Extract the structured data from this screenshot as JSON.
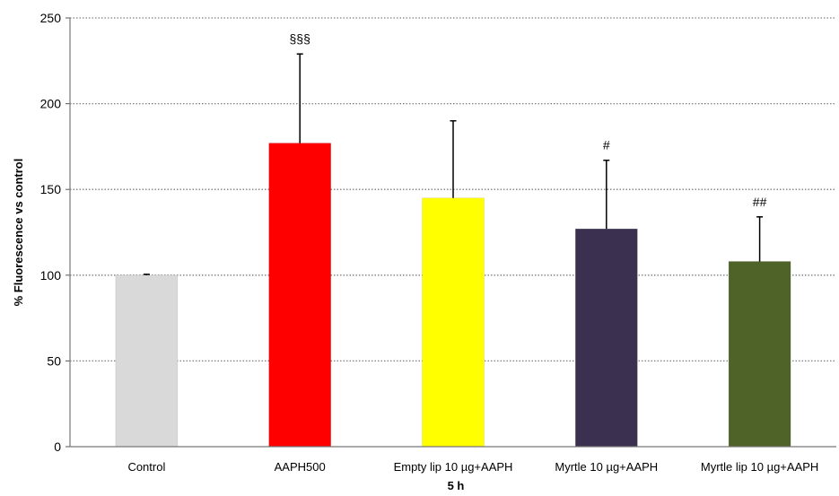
{
  "chart_data": {
    "type": "bar",
    "title": "",
    "xlabel": "5 h",
    "ylabel": "% Fluorescence vs control",
    "ylim": [
      0,
      250
    ],
    "yticks": [
      0,
      50,
      100,
      150,
      200,
      250
    ],
    "grid": "horizontal-dotted",
    "categories": [
      "Control",
      "AAPH500",
      "Empty lip 10 µg+AAPH",
      "Myrtle 10 µg+AAPH",
      "Myrtle lip 10 µg+AAPH"
    ],
    "values": [
      100,
      177,
      145,
      127,
      108
    ],
    "errors": [
      0.5,
      52,
      45,
      40,
      26
    ],
    "annotations": [
      "",
      "§§§",
      "",
      "#",
      "##"
    ],
    "colors": [
      "#d9d9d9",
      "#ff0000",
      "#ffff00",
      "#3b3050",
      "#4f6228"
    ]
  }
}
